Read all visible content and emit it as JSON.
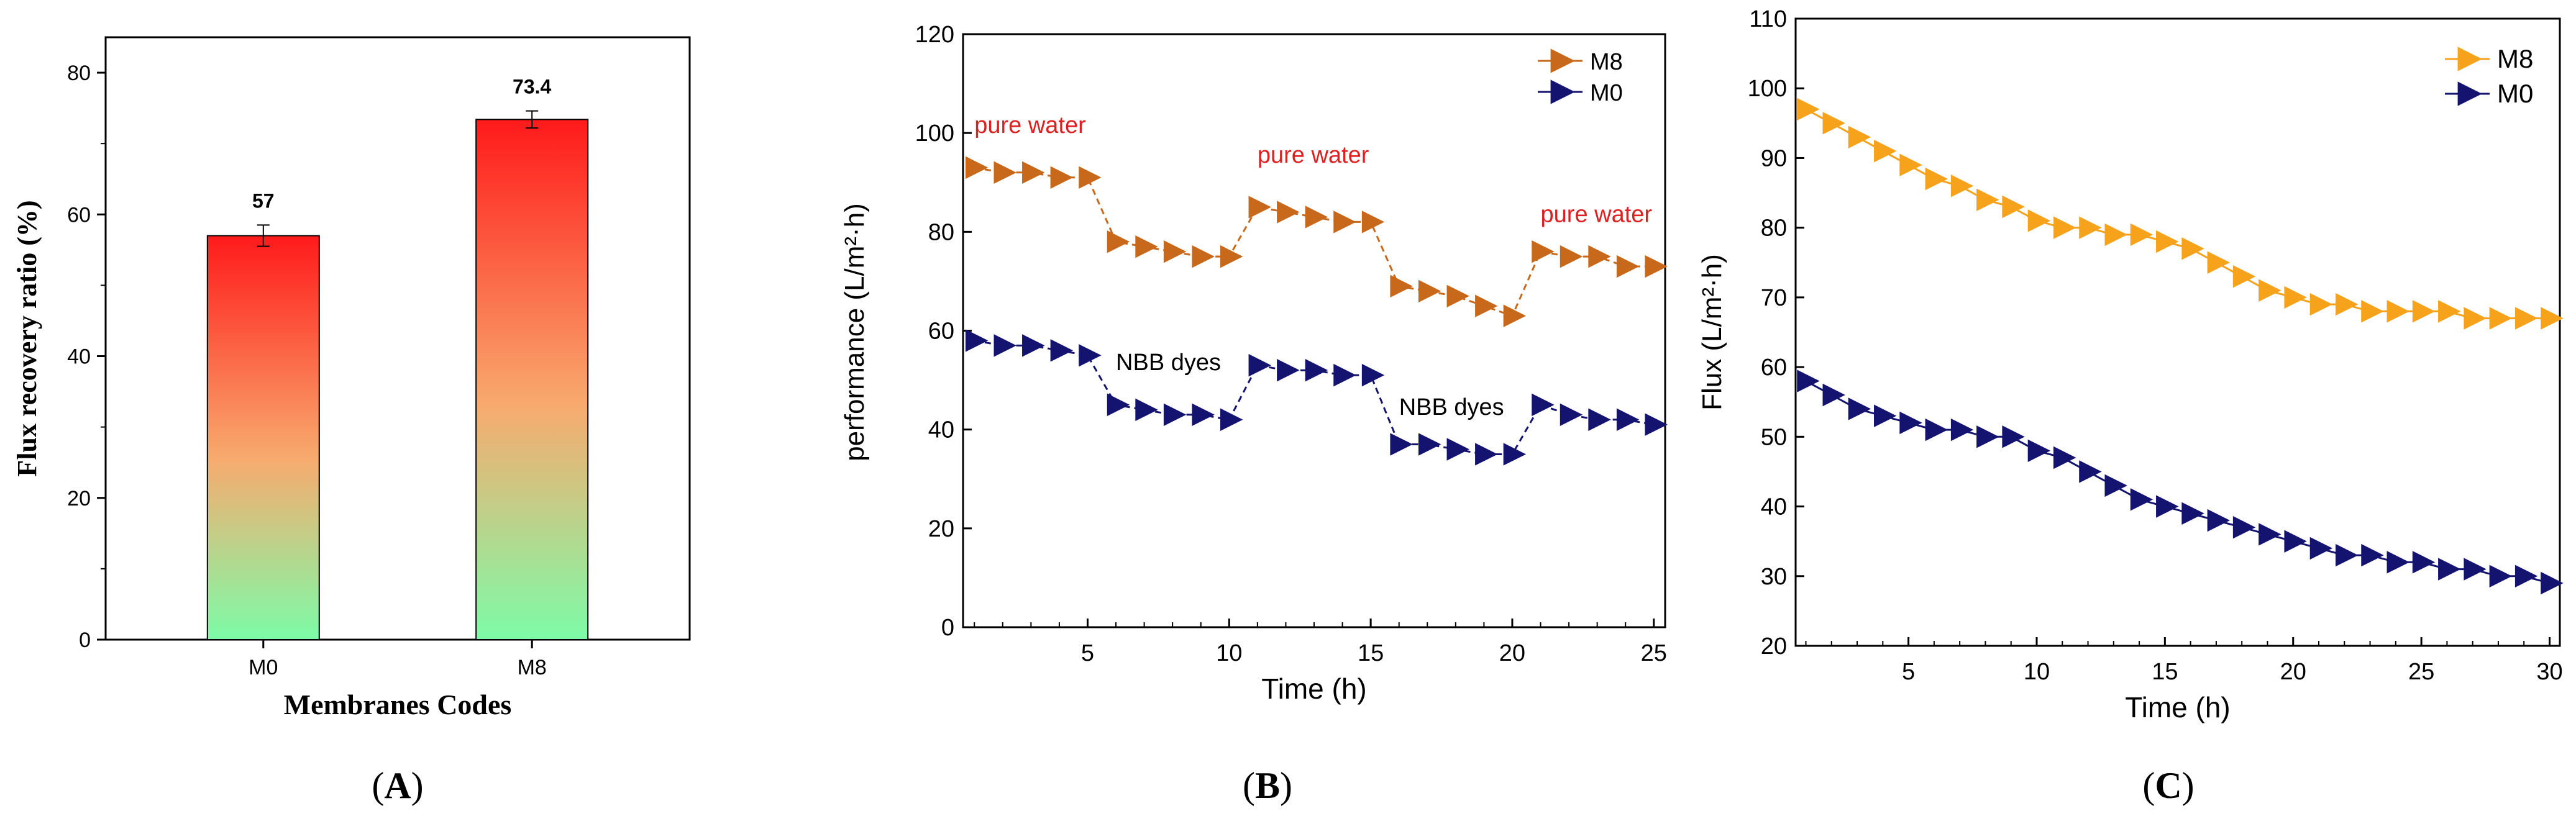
{
  "colors": {
    "bar_top": "#ff1a1a",
    "bar_mid": "#f8aa6e",
    "bar_bottom": "#7dfca8",
    "m8_line": "#c8681a",
    "m8_flux": "#f7a21b",
    "m0_line": "#141470",
    "annotation_red": "#e02020",
    "axis": "#000000"
  },
  "chart_data": [
    {
      "type": "bar",
      "panel_label": "(A)",
      "panel_letter": "A",
      "categories": [
        "M0",
        "M8"
      ],
      "values": [
        57,
        73.4
      ],
      "value_labels": [
        "57",
        "73.4"
      ],
      "errors": [
        1.5,
        1.2
      ],
      "title": "",
      "xlabel": "Membranes Codes",
      "ylabel": "Flux recovery ratio (%)",
      "ylim": [
        0,
        85
      ],
      "yticks": [
        0,
        20,
        40,
        60,
        80
      ],
      "ytick_labels": [
        "0",
        "20",
        "40",
        "60",
        "80"
      ]
    },
    {
      "type": "line",
      "panel_label": "(B)",
      "panel_letter": "B",
      "xlabel": "Time (h)",
      "ylabel": "performance (L/m²·h)",
      "xlim": [
        0.6,
        25.4
      ],
      "ylim": [
        0,
        120
      ],
      "xticks": [
        5,
        10,
        15,
        20,
        25
      ],
      "xtick_labels": [
        "5",
        "10",
        "15",
        "20",
        "25"
      ],
      "yticks": [
        0,
        20,
        40,
        60,
        80,
        100,
        120
      ],
      "ytick_labels": [
        "0",
        "20",
        "40",
        "60",
        "80",
        "100",
        "120"
      ],
      "legend_position": "top-right",
      "x": [
        1,
        2,
        3,
        4,
        5,
        6,
        7,
        8,
        9,
        10,
        11,
        12,
        13,
        14,
        15,
        16,
        17,
        18,
        19,
        20,
        21,
        22,
        23,
        24,
        25
      ],
      "series": [
        {
          "name": "M8",
          "color": "#c8681a",
          "values": [
            93,
            92,
            92,
            91,
            91,
            78,
            77,
            76,
            75,
            75,
            85,
            84,
            83,
            82,
            82,
            69,
            68,
            67,
            65,
            63,
            76,
            75,
            75,
            73,
            73
          ]
        },
        {
          "name": "M0",
          "color": "#141470",
          "values": [
            58,
            57,
            57,
            56,
            55,
            45,
            44,
            43,
            43,
            42,
            53,
            52,
            52,
            51,
            51,
            37,
            37,
            36,
            35,
            35,
            45,
            43,
            42,
            42,
            41
          ]
        }
      ],
      "annotations": [
        {
          "text": "pure water",
          "x": 1,
          "y": 100,
          "color": "red"
        },
        {
          "text": "pure water",
          "x": 11,
          "y": 94,
          "color": "red"
        },
        {
          "text": "pure water",
          "x": 21,
          "y": 82,
          "color": "red"
        },
        {
          "text": "NBB dyes",
          "x": 6,
          "y": 52,
          "color": "black"
        },
        {
          "text": "NBB dyes",
          "x": 16,
          "y": 43,
          "color": "black"
        }
      ]
    },
    {
      "type": "line",
      "panel_label": "(C)",
      "panel_letter": "C",
      "xlabel": "Time (h)",
      "ylabel": "Flux (L/m²·h)",
      "xlim": [
        0.6,
        30.4
      ],
      "ylim": [
        20,
        110
      ],
      "xticks": [
        5,
        10,
        15,
        20,
        25,
        30
      ],
      "xtick_labels": [
        "5",
        "10",
        "15",
        "20",
        "25",
        "30"
      ],
      "yticks": [
        20,
        30,
        40,
        50,
        60,
        70,
        80,
        90,
        100,
        110
      ],
      "ytick_labels": [
        "20",
        "30",
        "40",
        "50",
        "60",
        "70",
        "80",
        "90",
        "100",
        "110"
      ],
      "legend_position": "top-right",
      "x": [
        1,
        2,
        3,
        4,
        5,
        6,
        7,
        8,
        9,
        10,
        11,
        12,
        13,
        14,
        15,
        16,
        17,
        18,
        19,
        20,
        21,
        22,
        23,
        24,
        25,
        26,
        27,
        28,
        29,
        30
      ],
      "series": [
        {
          "name": "M8",
          "color": "#f7a21b",
          "values": [
            97,
            95,
            93,
            91,
            89,
            87,
            86,
            84,
            83,
            81,
            80,
            80,
            79,
            79,
            78,
            77,
            75,
            73,
            71,
            70,
            69,
            69,
            68,
            68,
            68,
            68,
            67,
            67,
            67,
            67
          ]
        },
        {
          "name": "M0",
          "color": "#141470",
          "values": [
            58,
            56,
            54,
            53,
            52,
            51,
            51,
            50,
            50,
            48,
            47,
            45,
            43,
            41,
            40,
            39,
            38,
            37,
            36,
            35,
            34,
            33,
            33,
            32,
            32,
            31,
            31,
            30,
            30,
            29
          ]
        }
      ]
    }
  ]
}
